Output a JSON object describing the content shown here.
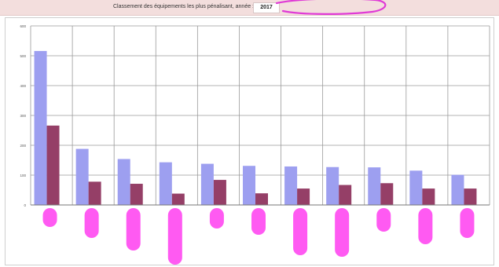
{
  "header": {
    "title": "Classement des équipements les plus pénalisant, année :",
    "year": "2017",
    "background": "#f3dedd"
  },
  "annotations": {
    "year_circle_color": "#e03ad6",
    "redaction_color": "#ff3df0"
  },
  "chart_data": {
    "type": "bar",
    "title": "",
    "xlabel": "",
    "ylabel": "",
    "ylim": [
      0,
      600
    ],
    "yticks": [
      0,
      100,
      200,
      300,
      400,
      500,
      600
    ],
    "ytick_labels": [
      "0",
      "100",
      "200",
      "300",
      "400",
      "500",
      "600"
    ],
    "grid": true,
    "legend": "none",
    "categories": [
      "",
      "",
      "",
      "",
      "",
      "",
      "",
      "",
      "",
      "",
      ""
    ],
    "category_labels_redacted": true,
    "series": [
      {
        "color": "#9d9ff0",
        "values": [
          516,
          188,
          154,
          143,
          138,
          131,
          129,
          127,
          126,
          115,
          101
        ]
      },
      {
        "color": "#953f67",
        "values": [
          266,
          78,
          71,
          38,
          84,
          39,
          55,
          67,
          73,
          55,
          55
        ]
      }
    ]
  }
}
